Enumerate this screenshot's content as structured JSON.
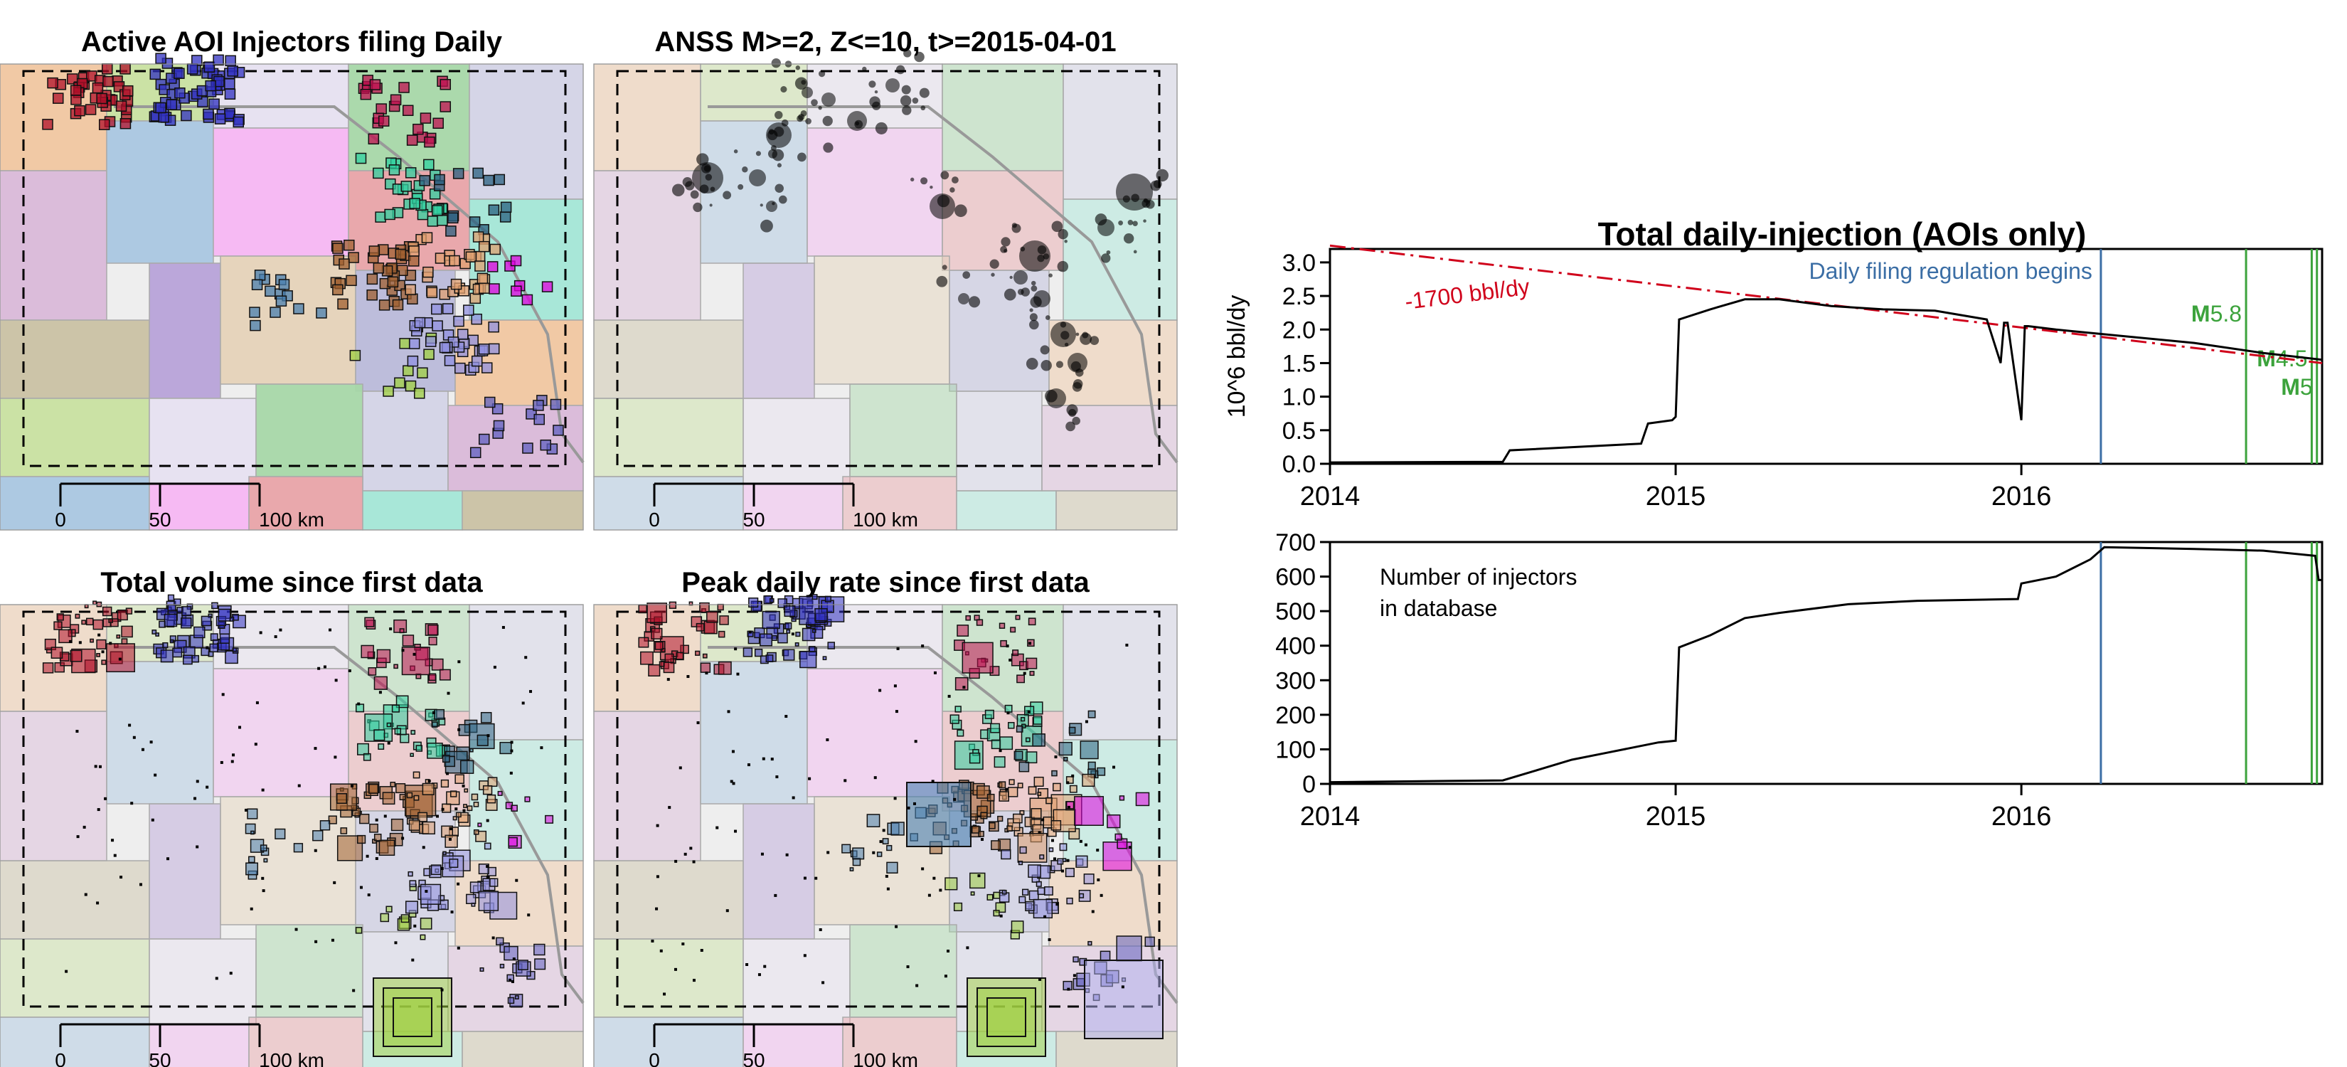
{
  "maps": [
    {
      "id": "active",
      "title": "Active AOI Injectors filing Daily"
    },
    {
      "id": "anss",
      "title": "ANSS  M>=2, Z<=10, t>=2015-04-01"
    },
    {
      "id": "volume",
      "title": "Total volume since first data"
    },
    {
      "id": "peak",
      "title": "Peak daily rate since first data"
    }
  ],
  "scalebar": {
    "ticks": [
      "0",
      "50",
      "100 km"
    ]
  },
  "region_colors": [
    "#d9b8d8",
    "#e8a3a8",
    "#b7a2d8",
    "#f0c6a0",
    "#a6d7a8",
    "#a9c6e0",
    "#a3e6d6",
    "#e5d2b8",
    "#c8e0a0",
    "#d3d3e6",
    "#f5b6f2",
    "#c9c1a3",
    "#b9b9d9",
    "#e6e0f0"
  ],
  "chart_data": [
    {
      "type": "line",
      "title": "Total daily-injection (AOIs only)",
      "ylabel": "10^6  bbl/dy",
      "ylim": [
        0,
        3.2
      ],
      "yticks": [
        "0.0",
        "0.5",
        "1.0",
        "1.5",
        "2.0",
        "2.5",
        "3.0"
      ],
      "xlim": [
        2014.0,
        2016.87
      ],
      "xticks": [
        "2014",
        "2015",
        "2016"
      ],
      "series": [
        {
          "x": [
            2014.0,
            2014.5,
            2014.52,
            2014.9,
            2014.92,
            2014.99,
            2015.0,
            2015.01,
            2015.1,
            2015.2,
            2015.3,
            2015.45,
            2015.6,
            2015.75,
            2015.9,
            2015.94,
            2015.95,
            2015.96,
            2016.0,
            2016.01,
            2016.02,
            2016.1,
            2016.3,
            2016.5,
            2016.7,
            2016.87
          ],
          "y": [
            0.02,
            0.03,
            0.2,
            0.3,
            0.6,
            0.65,
            0.7,
            2.15,
            2.3,
            2.45,
            2.45,
            2.35,
            2.3,
            2.28,
            2.15,
            1.5,
            2.1,
            2.1,
            0.65,
            2.05,
            2.05,
            2.0,
            1.9,
            1.8,
            1.65,
            1.55
          ]
        }
      ],
      "trend": {
        "label": "-1700 bbl/dy",
        "x": [
          2014.0,
          2016.87
        ],
        "y": [
          3.25,
          1.5
        ]
      },
      "annotations": [
        {
          "label": "Daily filing regulation begins",
          "x": 2016.23,
          "color": "#3b6ea5"
        },
        {
          "label": "5.8",
          "prefix": "M",
          "x": 2016.65,
          "color": "#3ca33c"
        },
        {
          "label": "4.5",
          "prefix": "M",
          "x": 2016.84,
          "color": "#3ca33c"
        },
        {
          "label": "5",
          "prefix": "M",
          "x": 2016.855,
          "color": "#3ca33c"
        }
      ],
      "colors": {
        "line": "#000000",
        "trend": "#d0021b"
      }
    },
    {
      "type": "line",
      "title": "",
      "legend_text": [
        "Number of injectors",
        "in database"
      ],
      "ylim": [
        0,
        700
      ],
      "yticks": [
        "0",
        "100",
        "200",
        "300",
        "400",
        "500",
        "600",
        "700"
      ],
      "xlim": [
        2014.0,
        2016.87
      ],
      "xticks": [
        "2014",
        "2015",
        "2016"
      ],
      "series": [
        {
          "x": [
            2014.0,
            2014.5,
            2014.6,
            2014.7,
            2014.8,
            2014.95,
            2015.0,
            2015.01,
            2015.1,
            2015.2,
            2015.3,
            2015.5,
            2015.7,
            2015.99,
            2016.0,
            2016.1,
            2016.2,
            2016.24,
            2016.5,
            2016.7,
            2016.85,
            2016.86,
            2016.87
          ],
          "y": [
            5,
            10,
            40,
            70,
            90,
            120,
            125,
            395,
            430,
            480,
            495,
            520,
            530,
            535,
            580,
            600,
            650,
            685,
            680,
            675,
            660,
            590,
            590
          ]
        }
      ],
      "annotations": [
        {
          "x": 2016.23,
          "color": "#3b6ea5"
        },
        {
          "x": 2016.65,
          "color": "#3ca33c"
        },
        {
          "x": 2016.84,
          "color": "#3ca33c"
        },
        {
          "x": 2016.855,
          "color": "#3ca33c"
        }
      ],
      "colors": {
        "line": "#000000"
      }
    }
  ]
}
